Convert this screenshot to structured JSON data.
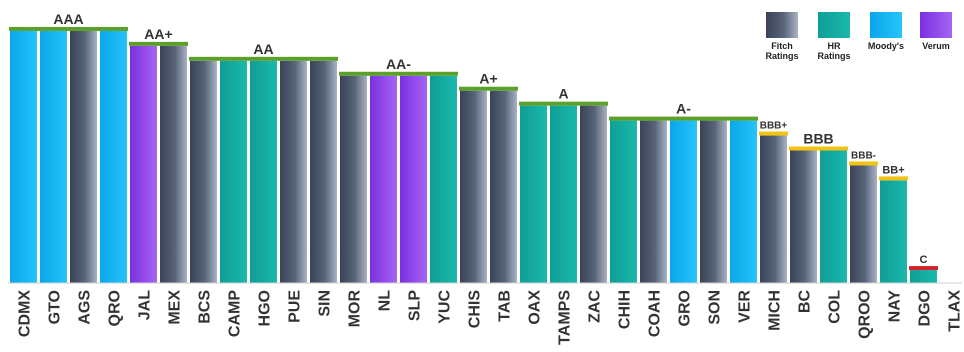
{
  "colors": {
    "fitch": "#4f5a70",
    "hr": "#14aaa0",
    "moodys": "#0fb0f0",
    "verum": "#8a3ce6",
    "grade_aa_a": "#5aa02a",
    "grade_bbb": "#f2c313",
    "grade_c": "#d0232b",
    "axis_label": "#333333",
    "grade_label": "#333333"
  },
  "legend": {
    "position": "top-right",
    "items": [
      {
        "key": "fitch",
        "label": "Fitch\nRatings"
      },
      {
        "key": "hr",
        "label": "HR\nRatings"
      },
      {
        "key": "moodys",
        "label": "Moody's"
      },
      {
        "key": "verum",
        "label": "Verum"
      }
    ]
  },
  "chart_data": {
    "type": "bar",
    "title": "",
    "xlabel": "",
    "ylabel": "",
    "grid": false,
    "ylim": [
      0,
      18
    ],
    "scale_note": "rating notch (C=1 ... AAA=17)",
    "categories": [
      "CDMX",
      "GTO",
      "AGS",
      "QRO",
      "JAL",
      "MEX",
      "BCS",
      "CAMP",
      "HGO",
      "PUE",
      "SIN",
      "MOR",
      "NL",
      "SLP",
      "YUC",
      "CHIS",
      "TAB",
      "OAX",
      "TAMPS",
      "ZAC",
      "CHIH",
      "COAH",
      "GRO",
      "SON",
      "VER",
      "MICH",
      "BC",
      "COL",
      "QROO",
      "NAY",
      "DGO",
      "TLAX"
    ],
    "values": [
      17,
      17,
      17,
      17,
      16,
      16,
      15,
      15,
      15,
      15,
      15,
      14,
      14,
      14,
      14,
      13,
      13,
      12,
      12,
      12,
      11,
      11,
      11,
      11,
      11,
      10,
      9,
      9,
      8,
      7,
      1,
      null
    ],
    "agency": [
      "moodys",
      "moodys",
      "fitch",
      "moodys",
      "verum",
      "fitch",
      "fitch",
      "hr",
      "hr",
      "fitch",
      "fitch",
      "fitch",
      "verum",
      "verum",
      "hr",
      "fitch",
      "fitch",
      "hr",
      "hr",
      "fitch",
      "hr",
      "fitch",
      "moodys",
      "fitch",
      "moodys",
      "fitch",
      "fitch",
      "hr",
      "fitch",
      "hr",
      "hr",
      null
    ],
    "groups": [
      {
        "label": "AAA",
        "start": 0,
        "end": 3,
        "value": 17,
        "color": "grade_aa_a"
      },
      {
        "label": "AA+",
        "start": 4,
        "end": 5,
        "value": 16,
        "color": "grade_aa_a"
      },
      {
        "label": "AA",
        "start": 6,
        "end": 10,
        "value": 15,
        "color": "grade_aa_a"
      },
      {
        "label": "AA-",
        "start": 11,
        "end": 14,
        "value": 14,
        "color": "grade_aa_a"
      },
      {
        "label": "A+",
        "start": 15,
        "end": 16,
        "value": 13,
        "color": "grade_aa_a"
      },
      {
        "label": "A",
        "start": 17,
        "end": 19,
        "value": 12,
        "color": "grade_aa_a"
      },
      {
        "label": "A-",
        "start": 20,
        "end": 24,
        "value": 11,
        "color": "grade_aa_a"
      },
      {
        "label": "BBB+",
        "start": 25,
        "end": 25,
        "value": 10,
        "color": "grade_bbb"
      },
      {
        "label": "BBB",
        "start": 26,
        "end": 27,
        "value": 9,
        "color": "grade_bbb"
      },
      {
        "label": "BBB-",
        "start": 28,
        "end": 28,
        "value": 8,
        "color": "grade_bbb"
      },
      {
        "label": "BB+",
        "start": 29,
        "end": 29,
        "value": 7,
        "color": "grade_bbb"
      },
      {
        "label": "C",
        "start": 30,
        "end": 30,
        "value": 1,
        "color": "grade_c"
      }
    ]
  }
}
